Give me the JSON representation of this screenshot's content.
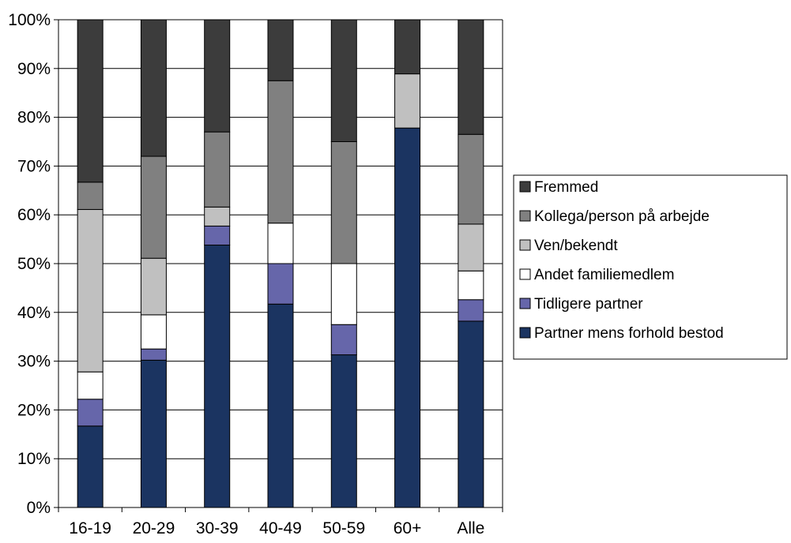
{
  "chart_data": {
    "type": "bar",
    "stacked": true,
    "percent_scale": true,
    "title": "",
    "xlabel": "",
    "ylabel": "",
    "categories": [
      "16-19",
      "20-29",
      "30-39",
      "40-49",
      "50-59",
      "60+",
      "Alle"
    ],
    "y_ticks": [
      "0%",
      "10%",
      "20%",
      "30%",
      "40%",
      "50%",
      "60%",
      "70%",
      "80%",
      "90%",
      "100%"
    ],
    "ylim": [
      0,
      100
    ],
    "grid": true,
    "legend_position": "right",
    "series": [
      {
        "name": "Partner mens forhold bestod",
        "color": "#1b3461",
        "values": [
          16.7,
          30.2,
          53.8,
          41.7,
          31.3,
          77.8,
          38.2
        ]
      },
      {
        "name": "Tidligere partner",
        "color": "#6666aa",
        "values": [
          5.5,
          2.3,
          3.9,
          8.3,
          6.2,
          0,
          4.4
        ]
      },
      {
        "name": "Andet familiemedlem",
        "color": "#ffffff",
        "values": [
          5.6,
          7.0,
          0,
          8.3,
          12.5,
          0,
          5.9
        ]
      },
      {
        "name": "Ven/bekendt",
        "color": "#c0c0c0",
        "values": [
          33.3,
          11.6,
          3.9,
          0,
          0,
          11.1,
          9.6
        ]
      },
      {
        "name": "Kollega/person på arbejde",
        "color": "#808080",
        "values": [
          5.6,
          20.9,
          15.4,
          29.2,
          25.0,
          0,
          18.4
        ]
      },
      {
        "name": "Fremmed",
        "color": "#3c3c3c",
        "values": [
          33.3,
          28.0,
          23.0,
          12.5,
          25.0,
          11.1,
          23.5
        ]
      }
    ]
  }
}
